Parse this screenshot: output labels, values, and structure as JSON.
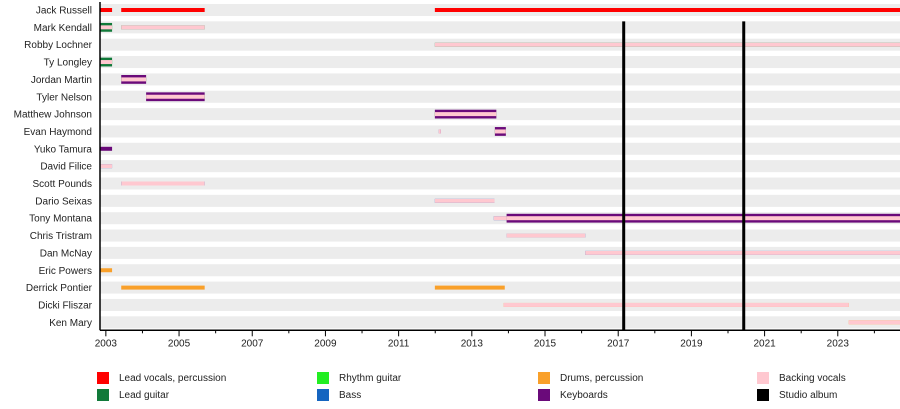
{
  "chart_data": {
    "type": "timeline",
    "xlim": [
      2002.84,
      2024.7
    ],
    "x_ticks": [
      "2003",
      "2005",
      "2007",
      "2009",
      "2011",
      "2013",
      "2015",
      "2017",
      "2019",
      "2021",
      "2023"
    ],
    "roles": {
      "vocals": {
        "label": "Lead vocals, percussion",
        "color": "#ff0000"
      },
      "lead": {
        "label": "Lead guitar",
        "color": "#117a3a"
      },
      "rhythm": {
        "label": "Rhythm guitar",
        "color": "#22ee22"
      },
      "bass": {
        "label": "Bass",
        "color": "#1565c0"
      },
      "drums": {
        "label": "Drums, percussion",
        "color": "#f9a02a"
      },
      "keys": {
        "label": "Keyboards",
        "color": "#6a0a7a"
      },
      "backing": {
        "label": "Backing vocals",
        "color": "#ffc8d0"
      },
      "album": {
        "label": "Studio album",
        "color": "#000000"
      }
    },
    "legend_order": [
      "vocals",
      "rhythm",
      "drums",
      "backing",
      "lead",
      "bass",
      "keys",
      "album"
    ],
    "members": [
      {
        "name": "Jack Russell",
        "bars": [
          [
            2002.84,
            2003.17,
            [
              "vocals"
            ]
          ],
          [
            2003.42,
            2005.7,
            [
              "vocals"
            ]
          ],
          [
            2011.99,
            2024.7,
            [
              "vocals"
            ]
          ]
        ]
      },
      {
        "name": "Mark Kendall",
        "bars": [
          [
            2002.84,
            2003.17,
            [
              "rhythm",
              "lead",
              "backing"
            ]
          ],
          [
            2003.42,
            2005.7,
            [
              "lead",
              "backing"
            ]
          ]
        ]
      },
      {
        "name": "Robby Lochner",
        "bars": [
          [
            2011.99,
            2024.7,
            [
              "lead",
              "backing"
            ]
          ]
        ]
      },
      {
        "name": "Ty Longley",
        "bars": [
          [
            2002.84,
            2003.17,
            [
              "rhythm",
              "lead",
              "backing"
            ]
          ]
        ]
      },
      {
        "name": "Jordan Martin",
        "bars": [
          [
            2003.42,
            2004.1,
            [
              "rhythm",
              "keys",
              "backing"
            ]
          ]
        ]
      },
      {
        "name": "Tyler Nelson",
        "bars": [
          [
            2004.1,
            2005.7,
            [
              "rhythm",
              "keys",
              "backing"
            ]
          ]
        ]
      },
      {
        "name": "Matthew Johnson",
        "bars": [
          [
            2011.99,
            2013.67,
            [
              "rhythm",
              "keys",
              "backing"
            ]
          ]
        ]
      },
      {
        "name": "Evan Haymond",
        "bars": [
          [
            2012.1,
            2012.15,
            [
              "keys",
              "backing"
            ]
          ],
          [
            2013.63,
            2013.93,
            [
              "rhythm",
              "keys",
              "backing"
            ]
          ]
        ]
      },
      {
        "name": "Yuko Tamura",
        "bars": [
          [
            2002.84,
            2003.17,
            [
              "keys"
            ]
          ]
        ]
      },
      {
        "name": "David Filice",
        "bars": [
          [
            2002.84,
            2003.17,
            [
              "bass",
              "backing"
            ]
          ]
        ]
      },
      {
        "name": "Scott Pounds",
        "bars": [
          [
            2003.42,
            2005.7,
            [
              "bass",
              "backing"
            ]
          ]
        ]
      },
      {
        "name": "Dario Seixas",
        "bars": [
          [
            2011.99,
            2013.62,
            [
              "bass",
              "backing"
            ]
          ]
        ]
      },
      {
        "name": "Tony Montana",
        "bars": [
          [
            2013.6,
            2013.95,
            [
              "bass",
              "backing"
            ]
          ],
          [
            2013.95,
            2024.7,
            [
              "rhythm",
              "keys",
              "backing"
            ]
          ]
        ]
      },
      {
        "name": "Chris Tristram",
        "bars": [
          [
            2013.95,
            2016.1,
            [
              "bass",
              "backing"
            ]
          ]
        ]
      },
      {
        "name": "Dan McNay",
        "bars": [
          [
            2016.1,
            2024.7,
            [
              "bass",
              "backing"
            ]
          ]
        ]
      },
      {
        "name": "Eric Powers",
        "bars": [
          [
            2002.84,
            2003.17,
            [
              "drums"
            ]
          ]
        ]
      },
      {
        "name": "Derrick Pontier",
        "bars": [
          [
            2003.42,
            2005.7,
            [
              "drums"
            ]
          ],
          [
            2011.99,
            2013.9,
            [
              "drums"
            ]
          ]
        ]
      },
      {
        "name": "Dicki Fliszar",
        "bars": [
          [
            2013.87,
            2023.3,
            [
              "drums",
              "backing"
            ]
          ]
        ]
      },
      {
        "name": "Ken Mary",
        "bars": [
          [
            2023.3,
            2024.7,
            [
              "drums",
              "backing"
            ]
          ]
        ]
      }
    ],
    "studio_albums": [
      2017.15,
      2020.43
    ]
  }
}
